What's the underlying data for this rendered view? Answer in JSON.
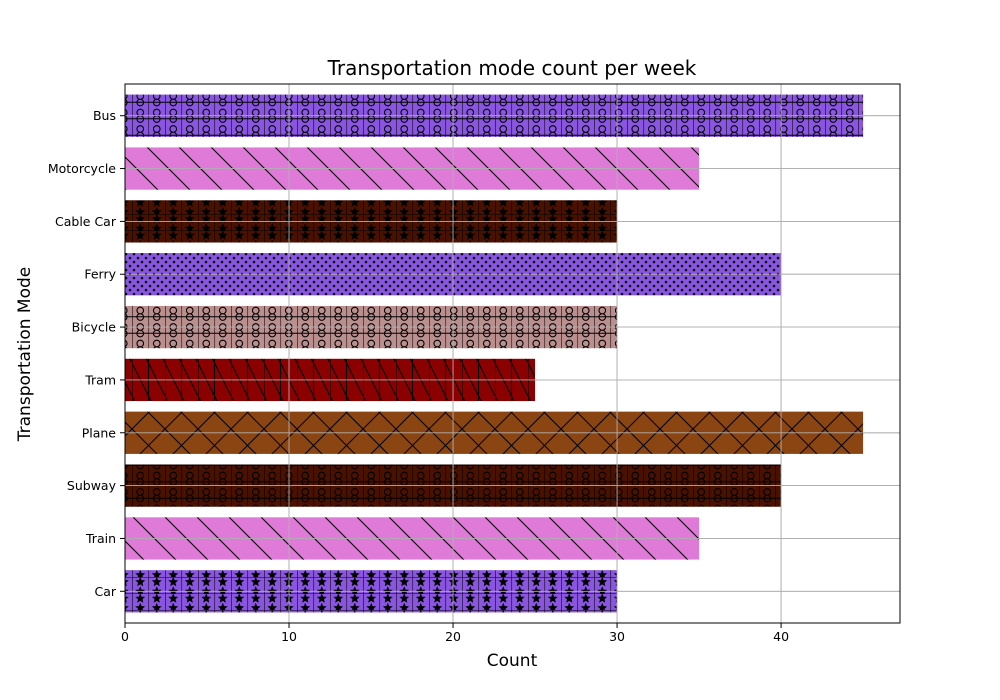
{
  "chart_data": {
    "type": "bar",
    "orientation": "horizontal",
    "title": "Transportation mode count per week",
    "xlabel": "Count",
    "ylabel": "Transportation Mode",
    "xlim": [
      0,
      47.25
    ],
    "xticks": [
      0,
      10,
      20,
      30,
      40
    ],
    "grid": true,
    "categories": [
      "Car",
      "Train",
      "Subway",
      "Plane",
      "Tram",
      "Bicycle",
      "Ferry",
      "Cable Car",
      "Motorcycle",
      "Bus"
    ],
    "values": [
      30,
      35,
      40,
      45,
      25,
      30,
      40,
      30,
      35,
      45
    ],
    "colors": [
      "#8a55e0",
      "#e07ad8",
      "#4a1000",
      "#8b4513",
      "#8b0000",
      "#bc8f8f",
      "#8a55e0",
      "#4a1000",
      "#e07ad8",
      "#8a55e0"
    ],
    "hatches": [
      "grid-stars",
      "backslash",
      "grid-circles",
      "cross",
      "grid-backslash",
      "grid-circles",
      "dots",
      "grid-stars",
      "backslash",
      "grid-circles"
    ]
  }
}
